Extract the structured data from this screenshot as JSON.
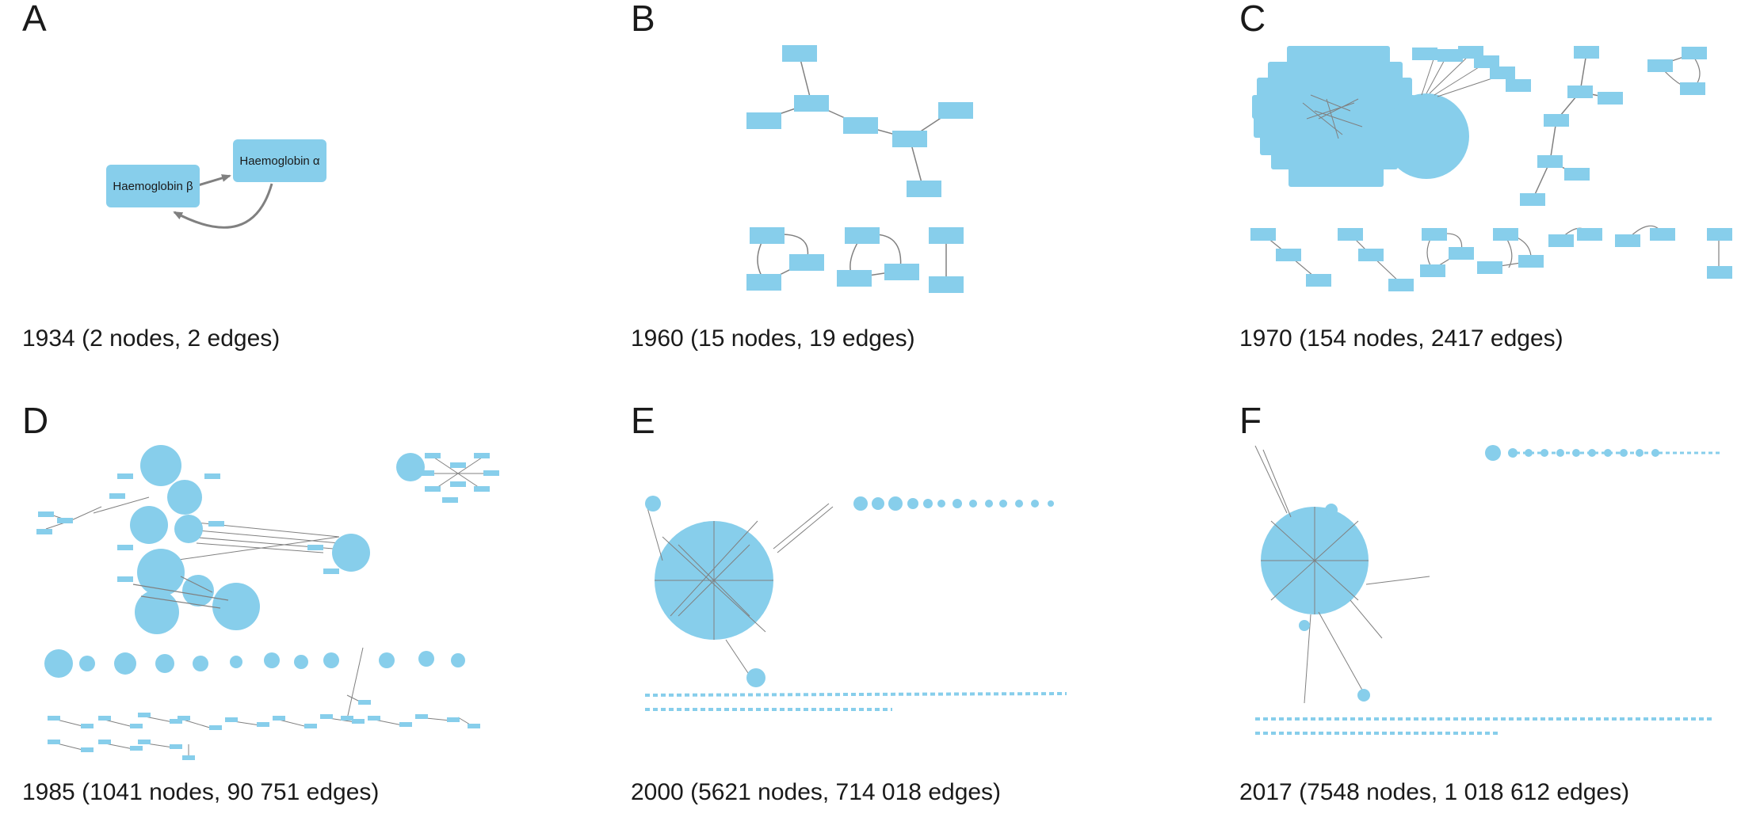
{
  "panels": [
    {
      "letter": "A",
      "caption": "1934 (2 nodes, 2 edges)"
    },
    {
      "letter": "B",
      "caption": "1960 (15 nodes, 19 edges)"
    },
    {
      "letter": "C",
      "caption": "1970 (154 nodes, 2417 edges)"
    },
    {
      "letter": "D",
      "caption": "1985 (1041 nodes, 90 751 edges)"
    },
    {
      "letter": "E",
      "caption": "2000 (5621 nodes, 714 018 edges)"
    },
    {
      "letter": "F",
      "caption": "2017 (7548 nodes, 1 018 612 edges)"
    }
  ],
  "panel_a_nodes": {
    "beta": "Haemoglobin β",
    "alpha": "Haemoglobin α"
  },
  "colors": {
    "node_fill": "#87CEEB",
    "edge_stroke": "#808080",
    "background": "#ffffff"
  }
}
